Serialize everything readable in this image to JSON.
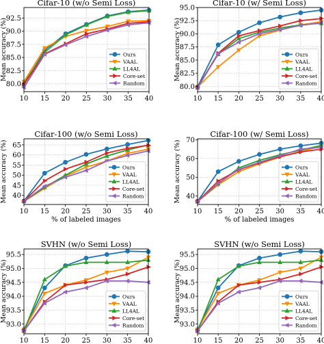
{
  "colors": {
    "Ours": "#1f77b4",
    "VAAL": "#ff8c00",
    "LL4AL": "#2ca02c",
    "Core-set": "#d62728",
    "Random": "#9467bd"
  },
  "legend_placement": "bottom-right",
  "chart_data": [
    {
      "type": "line",
      "title": "Cifar-10 (w/o Semi Loss)",
      "xlabel": "% of labeled images",
      "ylabel": "Mean accuracy (%)",
      "x": [
        10,
        15,
        20,
        25,
        30,
        35,
        40
      ],
      "xlim": [
        10,
        40
      ],
      "ylim": [
        78.5,
        94.5
      ],
      "yticks": [
        80.0,
        82.5,
        85.0,
        87.5,
        90.0,
        92.5
      ],
      "xticks": [
        10,
        15,
        20,
        25,
        30,
        35,
        40
      ],
      "show_xlabel": false,
      "show_legend": true,
      "series": [
        {
          "name": "Ours",
          "values": [
            79.8,
            86.4,
            89.5,
            91.3,
            92.9,
            93.7,
            94.0
          ]
        },
        {
          "name": "VAAL",
          "values": [
            80.4,
            86.8,
            89.0,
            90.1,
            90.9,
            91.9,
            92.0
          ]
        },
        {
          "name": "LL4AL",
          "values": [
            80.1,
            86.0,
            89.3,
            91.2,
            92.8,
            93.6,
            93.9
          ]
        },
        {
          "name": "Core-set",
          "values": [
            79.9,
            85.7,
            87.6,
            89.5,
            90.4,
            91.5,
            91.8
          ]
        },
        {
          "name": "Random",
          "values": [
            79.3,
            85.6,
            87.4,
            89.0,
            90.2,
            91.2,
            91.6
          ]
        }
      ]
    },
    {
      "type": "line",
      "title": "Cifar-10 (w/ Semi Loss)",
      "xlabel": "% of labeled images",
      "ylabel": "Mean accuracy (%)",
      "x": [
        10,
        15,
        20,
        25,
        30,
        35,
        40
      ],
      "xlim": [
        10,
        40
      ],
      "ylim": [
        79.0,
        95.0
      ],
      "yticks": [
        80.0,
        82.5,
        85.0,
        87.5,
        90.0,
        92.5,
        95.0
      ],
      "xticks": [
        10,
        15,
        20,
        25,
        30,
        35,
        40
      ],
      "show_xlabel": false,
      "show_legend": true,
      "series": [
        {
          "name": "Ours",
          "values": [
            79.9,
            87.9,
            90.3,
            92.1,
            93.2,
            94.0,
            94.5
          ]
        },
        {
          "name": "VAAL",
          "values": [
            79.9,
            83.7,
            86.9,
            89.6,
            90.7,
            91.7,
            92.3
          ]
        },
        {
          "name": "LL4AL",
          "values": [
            79.8,
            86.1,
            89.1,
            90.3,
            91.1,
            91.7,
            92.0
          ]
        },
        {
          "name": "Core-set",
          "values": [
            79.8,
            86.3,
            89.6,
            90.6,
            91.5,
            92.5,
            92.9
          ]
        },
        {
          "name": "Random",
          "values": [
            79.7,
            86.2,
            88.4,
            90.0,
            90.8,
            91.6,
            92.1
          ]
        }
      ]
    },
    {
      "type": "line",
      "title": "Cifar-100 (w/o Semi Loss)",
      "xlabel": "% of labeled images",
      "ylabel": "Mean accuracy (%)",
      "x": [
        10,
        15,
        20,
        25,
        30,
        35,
        40
      ],
      "xlim": [
        10,
        40
      ],
      "ylim": [
        35.5,
        68.0
      ],
      "yticks": [
        40,
        45,
        50,
        55,
        60,
        65
      ],
      "xticks": [
        10,
        15,
        20,
        25,
        30,
        35,
        40
      ],
      "show_xlabel": true,
      "show_legend": true,
      "series": [
        {
          "name": "Ours",
          "values": [
            37.2,
            51.0,
            56.4,
            60.3,
            63.0,
            65.2,
            67.2
          ]
        },
        {
          "name": "VAAL",
          "values": [
            37.0,
            43.5,
            49.5,
            54.0,
            57.0,
            60.8,
            62.9
          ]
        },
        {
          "name": "LL4AL",
          "values": [
            37.1,
            44.0,
            50.0,
            55.5,
            59.5,
            62.5,
            65.0
          ]
        },
        {
          "name": "Core-set",
          "values": [
            37.2,
            47.2,
            53.0,
            56.5,
            61.0,
            63.3,
            64.8
          ]
        },
        {
          "name": "Random",
          "values": [
            37.1,
            44.5,
            49.0,
            52.3,
            57.0,
            59.8,
            62.0
          ]
        }
      ]
    },
    {
      "type": "line",
      "title": "Cifar-100 (w/ Semi Loss)",
      "xlabel": "% of labeled images",
      "ylabel": "Mean accuracy (%)",
      "x": [
        10,
        15,
        20,
        25,
        30,
        35,
        40
      ],
      "xlim": [
        10,
        40
      ],
      "ylim": [
        35.5,
        70.5
      ],
      "yticks": [
        40,
        50,
        60,
        70
      ],
      "xticks": [
        10,
        15,
        20,
        25,
        30,
        35,
        40
      ],
      "show_xlabel": true,
      "show_legend": true,
      "series": [
        {
          "name": "Ours",
          "values": [
            37.2,
            53.0,
            58.5,
            62.2,
            65.0,
            66.8,
            68.2
          ]
        },
        {
          "name": "VAAL",
          "values": [
            37.0,
            46.0,
            53.0,
            57.2,
            60.8,
            63.8,
            66.5
          ]
        },
        {
          "name": "LL4AL",
          "values": [
            37.1,
            46.5,
            55.0,
            59.0,
            62.0,
            64.5,
            67.0
          ]
        },
        {
          "name": "Core-set",
          "values": [
            37.1,
            48.0,
            54.0,
            57.7,
            61.0,
            63.5,
            65.0
          ]
        },
        {
          "name": "Random",
          "values": [
            37.0,
            46.8,
            54.2,
            58.0,
            61.5,
            65.0,
            66.0
          ]
        }
      ]
    },
    {
      "type": "line",
      "title": "SVHN (w/o Semi Loss)",
      "xlabel": "% of labeled images",
      "ylabel": "Mean accuracy (%)",
      "x": [
        10,
        15,
        20,
        25,
        30,
        35,
        40
      ],
      "xlim": [
        10,
        40
      ],
      "ylim": [
        92.65,
        95.7
      ],
      "yticks": [
        93.0,
        93.5,
        94.0,
        94.5,
        95.0,
        95.5
      ],
      "xticks": [
        10,
        15,
        20,
        25,
        30,
        35,
        40
      ],
      "show_xlabel": true,
      "show_legend": true,
      "series": [
        {
          "name": "Ours",
          "values": [
            92.8,
            94.3,
            95.1,
            95.37,
            95.5,
            95.62,
            95.6
          ]
        },
        {
          "name": "VAAL",
          "values": [
            92.8,
            94.1,
            94.4,
            94.58,
            94.86,
            95.0,
            95.4
          ]
        },
        {
          "name": "LL4AL",
          "values": [
            92.75,
            94.6,
            95.08,
            95.22,
            95.22,
            95.22,
            95.3
          ]
        },
        {
          "name": "Core-set",
          "values": [
            92.75,
            93.8,
            94.4,
            94.5,
            94.6,
            94.8,
            95.05
          ]
        },
        {
          "name": "Random",
          "values": [
            92.75,
            93.75,
            94.15,
            94.3,
            94.55,
            94.55,
            94.5
          ]
        }
      ]
    },
    {
      "type": "line",
      "title": "SVHN (w/o Semi Loss)",
      "xlabel": "% of labeled images",
      "ylabel": "Mean accuracy (%)",
      "x": [
        10,
        15,
        20,
        25,
        30,
        35,
        40
      ],
      "xlim": [
        10,
        40
      ],
      "ylim": [
        92.65,
        95.7
      ],
      "yticks": [
        93.0,
        93.5,
        94.0,
        94.5,
        95.0,
        95.5
      ],
      "xticks": [
        10,
        15,
        20,
        25,
        30,
        35,
        40
      ],
      "show_xlabel": true,
      "show_legend": true,
      "series": [
        {
          "name": "Ours",
          "values": [
            92.8,
            94.3,
            95.1,
            95.37,
            95.5,
            95.62,
            95.6
          ]
        },
        {
          "name": "VAAL",
          "values": [
            92.8,
            94.1,
            94.4,
            94.58,
            94.86,
            95.0,
            95.4
          ]
        },
        {
          "name": "LL4AL",
          "values": [
            92.75,
            94.6,
            95.08,
            95.22,
            95.22,
            95.22,
            95.3
          ]
        },
        {
          "name": "Core-set",
          "values": [
            92.75,
            93.8,
            94.4,
            94.5,
            94.6,
            94.8,
            95.05
          ]
        },
        {
          "name": "Random",
          "values": [
            92.75,
            93.75,
            94.15,
            94.3,
            94.55,
            94.55,
            94.5
          ]
        }
      ]
    }
  ]
}
